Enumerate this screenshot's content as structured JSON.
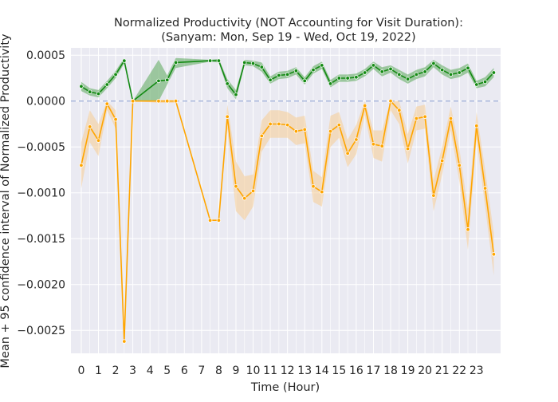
{
  "chart_data": {
    "type": "line",
    "title": "Normalized Productivity (NOT Accounting for Visit Duration):",
    "subtitle": "(Sanyam: Mon, Sep 19 - Wed, Oct 19, 2022)",
    "xlabel": "Time (Hour)",
    "ylabel": "Mean + 95 confidence interval of Normalized Productivity",
    "xlim": [
      -0.6,
      24.4
    ],
    "ylim": [
      -0.00275,
      0.00058
    ],
    "x_ticks": [
      0,
      1,
      2,
      3,
      4,
      5,
      6,
      7,
      8,
      9,
      10,
      11,
      12,
      13,
      14,
      15,
      16,
      17,
      18,
      19,
      20,
      21,
      22,
      23
    ],
    "x_tick_labels": [
      "0",
      "1",
      "2",
      "3",
      "4",
      "5",
      "6",
      "7",
      "8",
      "9",
      "10",
      "11",
      "12",
      "13",
      "14",
      "15",
      "16",
      "17",
      "18",
      "19",
      "20",
      "21",
      "22",
      "23"
    ],
    "y_ticks": [
      0.0005,
      0.0,
      -0.0005,
      -0.001,
      -0.0015,
      -0.002,
      -0.0025
    ],
    "y_tick_labels": [
      "0.0005",
      "0.0000",
      "−0.0005",
      "−0.0010",
      "−0.0015",
      "−0.0020",
      "−0.0025"
    ],
    "reference_line": 0,
    "grid": true,
    "colors": {
      "background": "#eaeaf2",
      "grid": "#ffffff",
      "positive": "#138a13",
      "positive_band": "#5aa85a",
      "negative": "#ffa500",
      "negative_band": "#f7c98a",
      "reference": "#a3b3d9"
    },
    "series": [
      {
        "color": "positive",
        "x": [
          0,
          0.5,
          1,
          1.5,
          2,
          2.5,
          3,
          4.5,
          5,
          5.5,
          7.5,
          8,
          8.5,
          9,
          9.5,
          10,
          10.5,
          11,
          11.5,
          12,
          12.5,
          13,
          13.5,
          14,
          14.5,
          15,
          15.5,
          16,
          16.5,
          17,
          17.5,
          18,
          18.5,
          19,
          19.5,
          20,
          20.5,
          21,
          21.5,
          22,
          22.5,
          23,
          23.5,
          24
        ],
        "values": [
          0.00016,
          0.0001,
          8e-05,
          0.00018,
          0.00029,
          0.00044,
          0.0,
          0.00022,
          0.00023,
          0.00042,
          0.00044,
          0.00044,
          0.00019,
          7e-05,
          0.00042,
          0.00041,
          0.00037,
          0.00023,
          0.00028,
          0.00029,
          0.00033,
          0.00022,
          0.00034,
          0.00039,
          0.00019,
          0.00025,
          0.00025,
          0.00026,
          0.00031,
          0.00039,
          0.00032,
          0.00035,
          0.00029,
          0.00024,
          0.00029,
          0.00032,
          0.00041,
          0.00034,
          0.00029,
          0.00031,
          0.00036,
          0.00018,
          0.00021,
          0.00031
        ],
        "lower": [
          0.00011,
          6e-05,
          4e-05,
          0.00014,
          0.00025,
          0.00041,
          0.0,
          0.0,
          0.00018,
          0.00036,
          0.00043,
          0.00042,
          0.00014,
          2e-05,
          0.00039,
          0.00038,
          0.00032,
          0.00019,
          0.00024,
          0.00025,
          0.00029,
          0.00018,
          0.0003,
          0.00035,
          0.00015,
          0.00021,
          0.00021,
          0.00022,
          0.00027,
          0.00035,
          0.00027,
          0.00031,
          0.00024,
          0.00019,
          0.00024,
          0.00027,
          0.00037,
          0.00029,
          0.00024,
          0.00026,
          0.00031,
          0.00014,
          0.00016,
          0.00026
        ],
        "upper": [
          0.00021,
          0.00014,
          0.00012,
          0.00022,
          0.00033,
          0.00047,
          0.0,
          0.00045,
          0.00028,
          0.00047,
          0.00045,
          0.00046,
          0.00024,
          0.00012,
          0.00045,
          0.00044,
          0.00042,
          0.00027,
          0.00032,
          0.00033,
          0.00037,
          0.00026,
          0.00038,
          0.00043,
          0.00023,
          0.00029,
          0.00029,
          0.0003,
          0.00035,
          0.00043,
          0.00037,
          0.00039,
          0.00034,
          0.00029,
          0.00034,
          0.00037,
          0.00045,
          0.00039,
          0.00034,
          0.00036,
          0.00041,
          0.00022,
          0.00026,
          0.00036
        ]
      },
      {
        "color": "negative",
        "x": [
          0,
          0.5,
          1,
          1.5,
          2,
          2.5,
          3,
          4.5,
          5,
          5.5,
          7.5,
          8,
          8.5,
          9,
          9.5,
          10,
          10.5,
          11,
          11.5,
          12,
          12.5,
          13,
          13.5,
          14,
          14.5,
          15,
          15.5,
          16,
          16.5,
          17,
          17.5,
          18,
          18.5,
          19,
          19.5,
          20,
          20.5,
          21,
          21.5,
          22,
          22.5,
          23,
          23.5,
          24
        ],
        "values": [
          -0.0007,
          -0.00028,
          -0.00043,
          -3e-05,
          -0.0002,
          -0.00262,
          0.0,
          0.0,
          0.0,
          0.0,
          -0.0013,
          -0.0013,
          -0.00017,
          -0.00093,
          -0.00106,
          -0.00098,
          -0.00038,
          -0.00025,
          -0.00025,
          -0.00026,
          -0.00033,
          -0.00031,
          -0.00093,
          -0.00099,
          -0.00033,
          -0.00026,
          -0.00057,
          -0.00042,
          -5e-05,
          -0.00047,
          -0.00049,
          0.0,
          -0.0001,
          -0.00052,
          -0.00019,
          -0.00017,
          -0.00103,
          -0.00065,
          -0.00019,
          -0.0007,
          -0.0014,
          -0.00027,
          -0.00095,
          -0.00167
        ],
        "lower": [
          -0.00095,
          -0.00045,
          -0.0006,
          -0.0001,
          -0.0003,
          -0.00262,
          0.0,
          -2e-05,
          -2e-05,
          -2e-05,
          -0.0013,
          -0.0013,
          -0.0003,
          -0.0012,
          -0.0013,
          -0.00115,
          -0.00055,
          -0.0004,
          -0.0004,
          -0.0004,
          -0.00048,
          -0.00046,
          -0.0011,
          -0.00115,
          -0.0005,
          -0.0004,
          -0.00072,
          -0.00058,
          -0.00015,
          -0.00062,
          -0.00066,
          -0.0001,
          -0.00025,
          -0.00068,
          -0.00032,
          -0.0003,
          -0.0012,
          -0.0008,
          -0.00032,
          -0.00088,
          -0.00162,
          -0.00042,
          -0.00115,
          -0.0019
        ],
        "upper": [
          -0.00045,
          -0.0001,
          -0.00025,
          0.0,
          -0.0001,
          -0.00262,
          0.0,
          0.0,
          0.0,
          0.0,
          -0.0013,
          -0.0013,
          -4e-05,
          -0.00066,
          -0.00082,
          -0.0008,
          -0.00021,
          -0.0001,
          -0.0001,
          -0.00012,
          -0.00018,
          -0.00016,
          -0.00076,
          -0.00083,
          -0.00016,
          -0.00012,
          -0.00042,
          -0.00026,
          0.0,
          -0.00032,
          -0.00032,
          0.0,
          0.0,
          -0.00036,
          -6e-05,
          -4e-05,
          -0.00086,
          -0.0005,
          -6e-05,
          -0.00052,
          -0.00118,
          -0.00012,
          -0.00075,
          -0.00144
        ]
      }
    ]
  }
}
